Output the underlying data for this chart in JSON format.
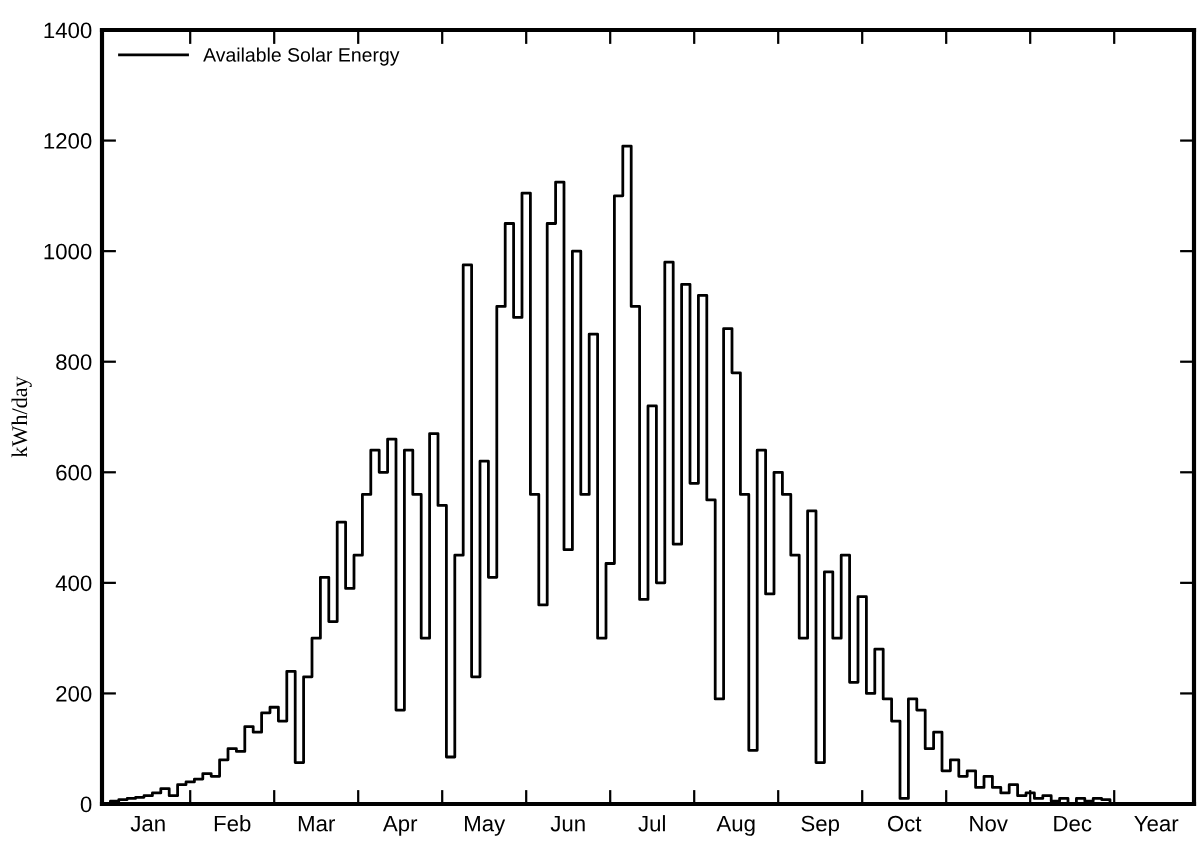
{
  "chart_data": {
    "type": "step",
    "ylabel": "kWh/day",
    "legend": "top left",
    "grid": false,
    "ylim": [
      0,
      1400
    ],
    "yticks": [
      0,
      200,
      400,
      600,
      800,
      1000,
      1200,
      1400
    ],
    "categories": [
      null,
      null,
      null,
      null,
      null,
      "Jan",
      null,
      null,
      null,
      null,
      null,
      null,
      null,
      null,
      null,
      "Feb",
      null,
      null,
      null,
      null,
      null,
      null,
      null,
      null,
      null,
      "Mar",
      null,
      null,
      null,
      null,
      null,
      null,
      null,
      null,
      null,
      "Apr",
      null,
      null,
      null,
      null,
      null,
      null,
      null,
      null,
      null,
      "May",
      null,
      null,
      null,
      null,
      null,
      null,
      null,
      null,
      null,
      "Jun",
      null,
      null,
      null,
      null,
      null,
      null,
      null,
      null,
      null,
      "Jul",
      null,
      null,
      null,
      null,
      null,
      null,
      null,
      null,
      null,
      "Aug",
      null,
      null,
      null,
      null,
      null,
      null,
      null,
      null,
      null,
      "Sep",
      null,
      null,
      null,
      null,
      null,
      null,
      null,
      null,
      null,
      "Oct",
      null,
      null,
      null,
      null,
      null,
      null,
      null,
      null,
      null,
      "Nov",
      null,
      null,
      null,
      null,
      null,
      null,
      null,
      null,
      null,
      "Dec",
      null,
      null,
      null,
      null,
      null,
      null,
      null,
      null,
      null,
      "Year",
      null,
      null,
      null,
      null
    ],
    "series": [
      {
        "name": "Available Solar Energy",
        "color": "#000000",
        "values": [
          0,
          5,
          8,
          10,
          12,
          15,
          20,
          28,
          15,
          35,
          40,
          45,
          55,
          50,
          80,
          100,
          95,
          140,
          130,
          165,
          175,
          150,
          240,
          75,
          230,
          300,
          410,
          330,
          510,
          390,
          450,
          560,
          640,
          600,
          660,
          170,
          640,
          560,
          300,
          670,
          540,
          85,
          450,
          975,
          230,
          620,
          410,
          900,
          1050,
          880,
          1105,
          560,
          360,
          1050,
          1125,
          460,
          1000,
          560,
          850,
          300,
          435,
          1100,
          1190,
          900,
          370,
          720,
          400,
          980,
          470,
          940,
          580,
          920,
          550,
          190,
          860,
          780,
          560,
          97,
          640,
          380,
          600,
          560,
          450,
          300,
          530,
          75,
          420,
          300,
          450,
          220,
          375,
          200,
          280,
          190,
          150,
          10,
          190,
          170,
          100,
          130,
          60,
          80,
          50,
          60,
          30,
          50,
          30,
          20,
          35,
          15,
          20,
          10,
          15,
          5,
          10,
          0,
          10,
          5,
          10,
          8,
          0,
          null,
          null,
          null,
          null,
          null,
          null,
          null,
          null,
          null
        ]
      }
    ]
  }
}
